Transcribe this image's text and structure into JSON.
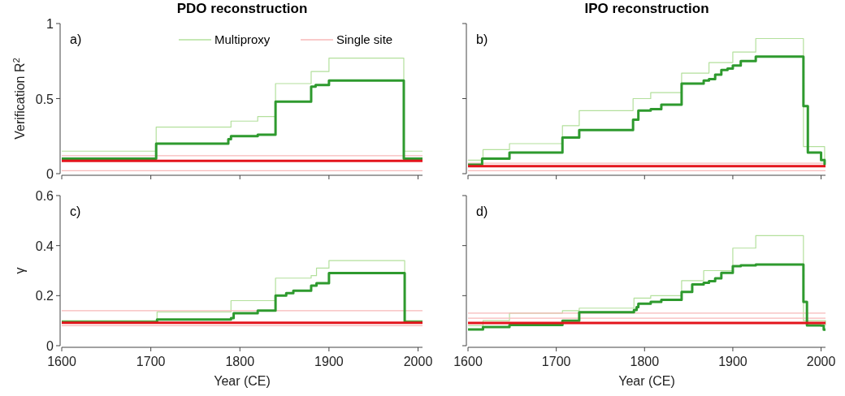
{
  "chart_data": [
    {
      "type": "step",
      "title": "PDO reconstruction",
      "ylabel": "Verification R$^{2}$",
      "annotations": [
        "a)"
      ],
      "xlim": [
        1600,
        2005
      ],
      "ylim": [
        0,
        1
      ],
      "xticks": [
        1600,
        1700,
        1800,
        1900,
        2000
      ],
      "yticks": [
        0,
        0.5,
        1
      ],
      "tick_labels": "y",
      "legend": "top right",
      "grid": false,
      "series": [
        {
          "name": "Multiproxy",
          "color": "#b3e09c",
          "x": [
            1600,
            1706,
            1790,
            1820,
            1840,
            1880,
            1900,
            1984,
            2005
          ],
          "values": [
            0.15,
            0.31,
            0.35,
            0.38,
            0.6,
            0.68,
            0.77,
            0.15,
            0.15
          ]
        },
        {
          "name": "Single site",
          "color": "#f7b8b8",
          "x": [
            1600,
            2005
          ],
          "values": [
            0.12,
            0.12
          ]
        },
        {
          "color": "#f7b8b8",
          "x": [
            1600,
            2005
          ],
          "values": [
            0.02,
            0.02
          ]
        },
        {
          "color": "#2e9a2e",
          "x": [
            1600,
            1706,
            1787,
            1790,
            1820,
            1840,
            1880,
            1885,
            1900,
            1984,
            2005
          ],
          "values": [
            0.1,
            0.2,
            0.23,
            0.25,
            0.26,
            0.48,
            0.58,
            0.59,
            0.62,
            0.1,
            0.1
          ]
        },
        {
          "color": "#e3141c",
          "x": [
            1600,
            2005
          ],
          "values": [
            0.085,
            0.085
          ]
        }
      ]
    },
    {
      "type": "step",
      "title": "IPO reconstruction",
      "annotations": [
        "b)"
      ],
      "xlim": [
        1600,
        2005
      ],
      "ylim": [
        0,
        1
      ],
      "xticks": [
        1600,
        1700,
        1800,
        1900,
        2000
      ],
      "yticks": [
        0,
        0.5,
        1
      ],
      "tick_labels": false,
      "grid": false,
      "series": [
        {
          "color": "#b3e09c",
          "x": [
            1600,
            1617,
            1647,
            1707,
            1726,
            1787,
            1807,
            1842,
            1873,
            1900,
            1926,
            1980,
            2004,
            2005
          ],
          "values": [
            0.09,
            0.16,
            0.2,
            0.32,
            0.42,
            0.5,
            0.54,
            0.67,
            0.74,
            0.81,
            0.9,
            0.18,
            0.1,
            0.1
          ]
        },
        {
          "color": "#f7b8b8",
          "x": [
            1600,
            2005
          ],
          "values": [
            0.07,
            0.07
          ]
        },
        {
          "color": "#f7b8b8",
          "x": [
            1600,
            2005
          ],
          "values": [
            0.02,
            0.02
          ]
        },
        {
          "color": "#2e9a2e",
          "x": [
            1600,
            1616,
            1647,
            1707,
            1726,
            1787,
            1793,
            1807,
            1819,
            1842,
            1867,
            1873,
            1880,
            1887,
            1894,
            1900,
            1909,
            1926,
            1980,
            1985,
            2000,
            2004,
            2005
          ],
          "values": [
            0.06,
            0.1,
            0.14,
            0.24,
            0.29,
            0.36,
            0.42,
            0.43,
            0.46,
            0.6,
            0.62,
            0.63,
            0.66,
            0.69,
            0.7,
            0.72,
            0.75,
            0.78,
            0.45,
            0.14,
            0.09,
            0.06,
            0.06
          ]
        },
        {
          "color": "#e3141c",
          "x": [
            1600,
            2005
          ],
          "values": [
            0.05,
            0.05
          ]
        }
      ]
    },
    {
      "type": "step",
      "ylabel": "γ",
      "xlabel": "Year (CE)",
      "annotations": [
        "c)"
      ],
      "xlim": [
        1600,
        2005
      ],
      "ylim": [
        0,
        0.6
      ],
      "xticks": [
        1600,
        1700,
        1800,
        1900,
        2000
      ],
      "yticks": [
        0,
        0.2,
        0.4,
        0.6
      ],
      "grid": false,
      "series": [
        {
          "color": "#b3e09c",
          "x": [
            1600,
            1707,
            1790,
            1840,
            1880,
            1886,
            1900,
            1985,
            2005
          ],
          "values": [
            0.1,
            0.135,
            0.18,
            0.27,
            0.28,
            0.31,
            0.34,
            0.1,
            0.1
          ]
        },
        {
          "color": "#f7b8b8",
          "x": [
            1600,
            2005
          ],
          "values": [
            0.14,
            0.14
          ]
        },
        {
          "color": "#f7b8b8",
          "x": [
            1600,
            2005
          ],
          "values": [
            0.08,
            0.08
          ]
        },
        {
          "color": "#2e9a2e",
          "x": [
            1600,
            1707,
            1790,
            1793,
            1820,
            1840,
            1852,
            1860,
            1880,
            1886,
            1900,
            1985,
            2005
          ],
          "values": [
            0.095,
            0.105,
            0.11,
            0.13,
            0.14,
            0.2,
            0.21,
            0.22,
            0.24,
            0.25,
            0.29,
            0.095,
            0.095
          ]
        },
        {
          "color": "#e3141c",
          "x": [
            1600,
            2005
          ],
          "values": [
            0.092,
            0.092
          ]
        }
      ]
    },
    {
      "type": "step",
      "xlabel": "Year (CE)",
      "annotations": [
        "d)"
      ],
      "xlim": [
        1600,
        2005
      ],
      "ylim": [
        0,
        0.6
      ],
      "xticks": [
        1600,
        1700,
        1800,
        1900,
        2000
      ],
      "yticks": [
        0,
        0.2,
        0.4,
        0.6
      ],
      "tick_labels": "x",
      "grid": false,
      "series": [
        {
          "color": "#b3e09c",
          "x": [
            1600,
            1617,
            1647,
            1707,
            1726,
            1788,
            1807,
            1842,
            1867,
            1900,
            1926,
            1980,
            2005
          ],
          "values": [
            0.08,
            0.1,
            0.13,
            0.14,
            0.15,
            0.19,
            0.2,
            0.26,
            0.3,
            0.39,
            0.44,
            0.1,
            0.08
          ]
        },
        {
          "color": "#f7b8b8",
          "x": [
            1600,
            2005
          ],
          "values": [
            0.13,
            0.13
          ]
        },
        {
          "color": "#f7b8b8",
          "x": [
            1600,
            2005
          ],
          "values": [
            0.11,
            0.11
          ]
        },
        {
          "color": "#2e9a2e",
          "x": [
            1600,
            1617,
            1647,
            1707,
            1726,
            1788,
            1791,
            1793,
            1807,
            1819,
            1842,
            1854,
            1867,
            1873,
            1880,
            1887,
            1900,
            1909,
            1926,
            1980,
            1984,
            2000,
            2003,
            2005
          ],
          "values": [
            0.065,
            0.075,
            0.083,
            0.1,
            0.134,
            0.143,
            0.154,
            0.168,
            0.175,
            0.183,
            0.215,
            0.245,
            0.251,
            0.258,
            0.269,
            0.291,
            0.318,
            0.321,
            0.324,
            0.175,
            0.081,
            0.08,
            0.064,
            0.064
          ]
        },
        {
          "color": "#e3141c",
          "x": [
            1600,
            2005
          ],
          "values": [
            0.091,
            0.091
          ]
        }
      ]
    }
  ]
}
